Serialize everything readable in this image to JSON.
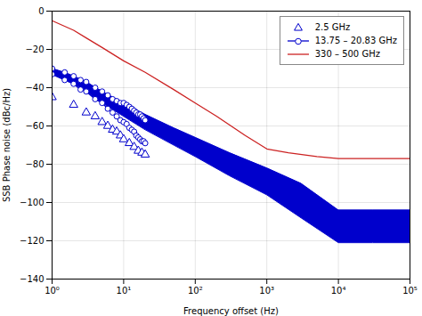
{
  "chart_data": {
    "type": "line",
    "xlabel": "Frequency offset (Hz)",
    "ylabel": "SSB Phase noise (dBc/Hz)",
    "log": "x",
    "xlim": [
      1,
      100000
    ],
    "xticks": [
      {
        "value": 1,
        "label": "10⁰"
      },
      {
        "value": 10,
        "label": "10¹"
      },
      {
        "value": 100,
        "label": "10²"
      },
      {
        "value": 1000,
        "label": "10³"
      },
      {
        "value": 10000,
        "label": "10⁴"
      },
      {
        "value": 100000,
        "label": "10⁵"
      }
    ],
    "ylim": [
      -140,
      0
    ],
    "yticks": [
      0,
      -20,
      -40,
      -60,
      -80,
      -100,
      -120,
      -140
    ],
    "grid": true,
    "legend": "upper right",
    "series": [
      {
        "name": "2.5 GHz",
        "type": "scatter",
        "marker": "triangle",
        "color": "#0000cc",
        "x": [
          1,
          2,
          3,
          4,
          5,
          6,
          7,
          8,
          9,
          10,
          12,
          14,
          16,
          18,
          20
        ],
        "values": [
          -45,
          -49,
          -53,
          -55,
          -58,
          -60,
          -62,
          -63,
          -65,
          -67,
          -69,
          -71,
          -73,
          -74,
          -75
        ]
      },
      {
        "type": "area",
        "color": "#0000cc",
        "x": [
          1,
          2,
          3,
          5,
          10,
          20,
          50,
          100,
          300,
          1000,
          3000,
          10000,
          30000,
          100000
        ],
        "upper": [
          -30,
          -34,
          -37,
          -42,
          -48,
          -54,
          -61,
          -66,
          -74,
          -82,
          -90,
          -104,
          -104,
          -104
        ],
        "lower": [
          -33,
          -38,
          -42,
          -48,
          -55,
          -62,
          -70,
          -76,
          -86,
          -96,
          -108,
          -121,
          -121,
          -121
        ]
      },
      {
        "name": "13.75 – 20.83 GHz",
        "type": "line",
        "marker": "circle",
        "color": "#0000cc",
        "x": [
          1,
          1.5,
          2,
          2.5,
          3,
          4,
          5,
          6,
          7,
          8,
          9,
          10,
          11,
          12,
          13,
          14,
          15,
          16,
          17,
          18,
          19,
          20
        ],
        "upper": [
          -30,
          -32,
          -34,
          -36,
          -37,
          -40,
          -42,
          -44,
          -46,
          -47,
          -48,
          -48,
          -49,
          -50,
          -51,
          -52,
          -53,
          -54,
          -54,
          -55,
          -56,
          -57
        ],
        "lower": [
          -33,
          -36,
          -38,
          -41,
          -42,
          -46,
          -48,
          -51,
          -53,
          -55,
          -57,
          -58,
          -59,
          -61,
          -62,
          -63,
          -65,
          -66,
          -67,
          -68,
          -68,
          -69
        ]
      },
      {
        "name": "330 – 500 GHz",
        "type": "line",
        "color": "#cc2222",
        "x": [
          1,
          2,
          3,
          5,
          10,
          20,
          50,
          100,
          200,
          500,
          1000,
          2000,
          5000,
          10000,
          30000,
          100000
        ],
        "values": [
          -5,
          -10,
          -14,
          -19,
          -26,
          -32,
          -41,
          -48,
          -55,
          -65,
          -72,
          -74,
          -76,
          -77,
          -77,
          -77
        ]
      }
    ]
  }
}
